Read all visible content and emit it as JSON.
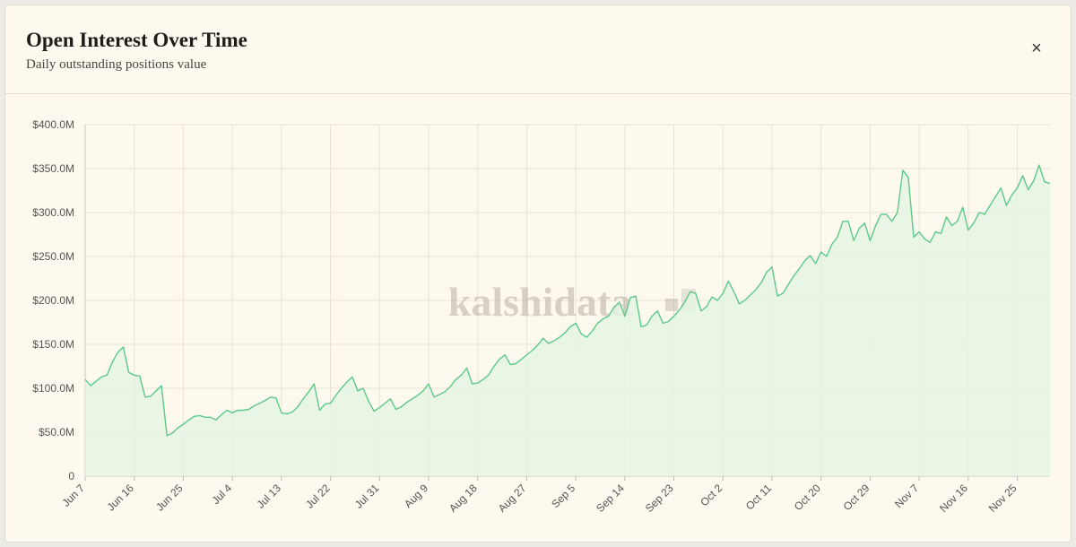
{
  "close_button": "×",
  "chart_data": {
    "type": "line",
    "title": "Open Interest Over Time",
    "subtitle": "Daily outstanding positions value",
    "watermark": "kalshidata",
    "color": "#5cc98a",
    "fill": "#e4f5e3",
    "grid": true,
    "ylim": [
      0,
      400
    ],
    "yticks": [
      0,
      {
        "value": 50,
        "label": "$50.0M"
      },
      {
        "value": 100,
        "label": "$100.0M"
      },
      {
        "value": 150,
        "label": "$150.0M"
      },
      {
        "value": 200,
        "label": "$200.0M"
      },
      {
        "value": 250,
        "label": "$250.0M"
      },
      {
        "value": 300,
        "label": "$300.0M"
      },
      {
        "value": 350,
        "label": "$350.0M"
      },
      {
        "value": 400,
        "label": "$400.0M"
      }
    ],
    "categories": [
      "Jun 7",
      null,
      null,
      null,
      null,
      null,
      null,
      null,
      null,
      "Jun 16",
      null,
      null,
      null,
      null,
      null,
      null,
      null,
      null,
      "Jun 25",
      null,
      null,
      null,
      null,
      null,
      null,
      null,
      null,
      "Jul 4",
      null,
      null,
      null,
      null,
      null,
      null,
      null,
      null,
      "Jul 13",
      null,
      null,
      null,
      null,
      null,
      null,
      null,
      null,
      "Jul 22",
      null,
      null,
      null,
      null,
      null,
      null,
      null,
      null,
      "Jul 31",
      null,
      null,
      null,
      null,
      null,
      null,
      null,
      null,
      "Aug 9",
      null,
      null,
      null,
      null,
      null,
      null,
      null,
      null,
      "Aug 18",
      null,
      null,
      null,
      null,
      null,
      null,
      null,
      null,
      "Aug 27",
      null,
      null,
      null,
      null,
      null,
      null,
      null,
      null,
      "Sep 5",
      null,
      null,
      null,
      null,
      null,
      null,
      null,
      null,
      "Sep 14",
      null,
      null,
      null,
      null,
      null,
      null,
      null,
      null,
      "Sep 23",
      null,
      null,
      null,
      null,
      null,
      null,
      null,
      null,
      "Oct 2",
      null,
      null,
      null,
      null,
      null,
      null,
      null,
      null,
      "Oct 11",
      null,
      null,
      null,
      null,
      null,
      null,
      null,
      null,
      "Oct 20",
      null,
      null,
      null,
      null,
      null,
      null,
      null,
      null,
      "Oct 29",
      null,
      null,
      null,
      null,
      null,
      null,
      null,
      null,
      "Nov 7",
      null,
      null,
      null,
      null,
      null,
      null,
      null,
      null,
      "Nov 16",
      null,
      null,
      null,
      null,
      null,
      null,
      null,
      null,
      "Nov 25",
      null,
      null,
      null,
      null,
      null,
      null
    ],
    "values": [
      110,
      103,
      108,
      113,
      115,
      130,
      141,
      147,
      118,
      115,
      114,
      90,
      91,
      97,
      103,
      46,
      49,
      55,
      59,
      64,
      68,
      69,
      67,
      67,
      64,
      70,
      75,
      72,
      75,
      75,
      76,
      80,
      83,
      86,
      90,
      89,
      72,
      71,
      73,
      79,
      88,
      96,
      105,
      75,
      82,
      83,
      92,
      100,
      107,
      113,
      97,
      100,
      85,
      74,
      78,
      83,
      88,
      76,
      79,
      84,
      88,
      92,
      97,
      105,
      90,
      93,
      96,
      102,
      110,
      115,
      123,
      105,
      106,
      110,
      115,
      125,
      133,
      138,
      127,
      128,
      133,
      138,
      143,
      149,
      157,
      151,
      154,
      158,
      163,
      170,
      174,
      162,
      158,
      165,
      174,
      179,
      182,
      192,
      198,
      182,
      203,
      205,
      170,
      172,
      182,
      188,
      174,
      176,
      182,
      189,
      198,
      210,
      208,
      188,
      193,
      204,
      200,
      208,
      222,
      210,
      196,
      200,
      206,
      212,
      220,
      232,
      238,
      205,
      208,
      218,
      228,
      236,
      245,
      251,
      242,
      255,
      250,
      264,
      272,
      290,
      290,
      268,
      282,
      288,
      268,
      285,
      298,
      298,
      290,
      300,
      348,
      340,
      272,
      278,
      270,
      266,
      278,
      276,
      295,
      285,
      290,
      306,
      280,
      288,
      300,
      298,
      308,
      318,
      328,
      308,
      320,
      328,
      342,
      326,
      336,
      354,
      335,
      333
    ]
  }
}
